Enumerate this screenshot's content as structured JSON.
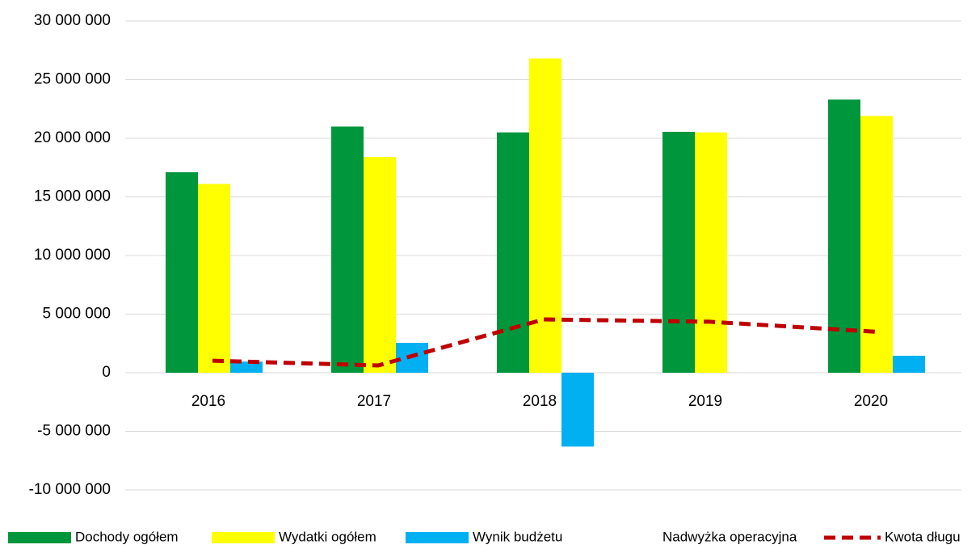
{
  "chart_data": {
    "type": "bar",
    "categories": [
      "2016",
      "2017",
      "2018",
      "2019",
      "2020"
    ],
    "series": [
      {
        "name": "Dochody ogółem",
        "color": "#00963c",
        "type": "bar",
        "values": [
          17100000,
          21000000,
          20500000,
          20550000,
          23300000
        ]
      },
      {
        "name": "Wydatki ogółem",
        "color": "#ffff00",
        "type": "bar",
        "values": [
          16100000,
          18400000,
          26800000,
          20500000,
          21900000
        ]
      },
      {
        "name": "Wynik budżetu",
        "color": "#00b0f0",
        "type": "bar",
        "values": [
          950000,
          2550000,
          -6300000,
          0,
          1450000
        ]
      },
      {
        "name": "Nadwyżka operacyjna",
        "color": "none",
        "type": "line",
        "values": [
          null,
          null,
          null,
          null,
          null
        ]
      },
      {
        "name": "Kwota długu",
        "color": "#c00000",
        "type": "line",
        "dashed": true,
        "values": [
          1030000,
          620000,
          4550000,
          4350000,
          3500000
        ]
      }
    ],
    "ylim": [
      -10000000,
      30000000
    ],
    "yticks": [
      {
        "value": -10000000,
        "label": "-10 000 000"
      },
      {
        "value": -5000000,
        "label": "-5 000 000"
      },
      {
        "value": 0,
        "label": "0"
      },
      {
        "value": 5000000,
        "label": "5 000 000"
      },
      {
        "value": 10000000,
        "label": "10 000 000"
      },
      {
        "value": 15000000,
        "label": "15 000 000"
      },
      {
        "value": 20000000,
        "label": "20 000 000"
      },
      {
        "value": 25000000,
        "label": "25 000 000"
      },
      {
        "value": 30000000,
        "label": "30 000 000"
      }
    ],
    "grid": true,
    "legend": "bottom"
  }
}
